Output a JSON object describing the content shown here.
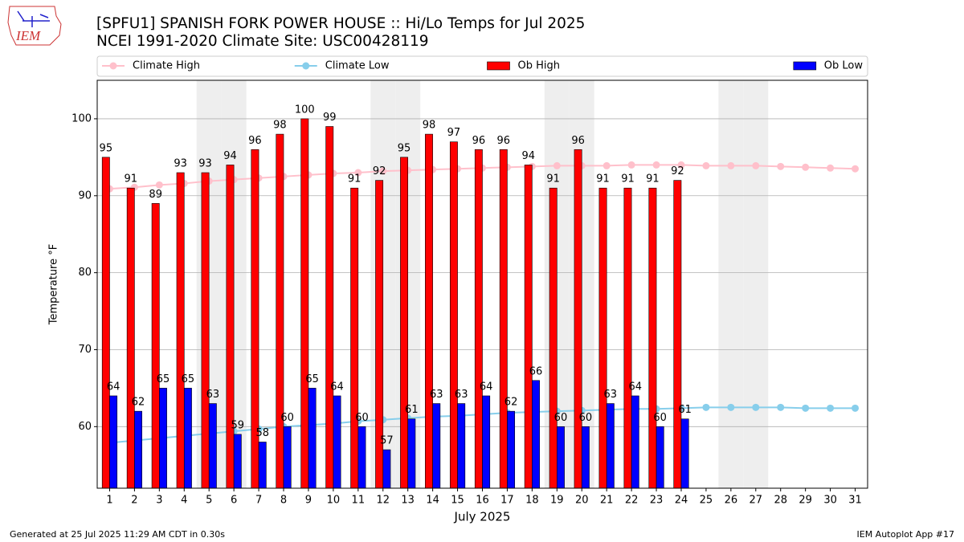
{
  "chart_data": {
    "type": "bar",
    "title": "[SPFU1] SPANISH FORK POWER HOUSE :: Hi/Lo Temps for Jul 2025",
    "subtitle": "NCEI 1991-2020 Climate Site: USC00428119",
    "xlabel": "July 2025",
    "ylabel": "Temperature °F",
    "categories": [
      "1",
      "2",
      "3",
      "4",
      "5",
      "6",
      "7",
      "8",
      "9",
      "10",
      "11",
      "12",
      "13",
      "14",
      "15",
      "16",
      "17",
      "18",
      "19",
      "20",
      "21",
      "22",
      "23",
      "24",
      "25",
      "26",
      "27",
      "28",
      "29",
      "30",
      "31"
    ],
    "shaded_days": [
      "5",
      "6",
      "12",
      "13",
      "19",
      "20",
      "26",
      "27"
    ],
    "shade_color": "#eeeeee",
    "series": [
      {
        "name": "Climate High",
        "type": "line",
        "color": "#ffc0cb",
        "values": [
          90.9,
          91.1,
          91.4,
          91.6,
          91.9,
          92.1,
          92.3,
          92.5,
          92.7,
          92.9,
          93.0,
          93.2,
          93.3,
          93.4,
          93.5,
          93.6,
          93.7,
          93.8,
          93.9,
          93.9,
          93.9,
          94.0,
          94.0,
          94.0,
          93.9,
          93.9,
          93.9,
          93.8,
          93.7,
          93.6,
          93.5
        ]
      },
      {
        "name": "Climate Low",
        "type": "line",
        "color": "#87ceeb",
        "values": [
          57.9,
          58.2,
          58.5,
          58.8,
          59.1,
          59.4,
          59.7,
          60.0,
          60.2,
          60.4,
          60.7,
          60.9,
          61.1,
          61.3,
          61.4,
          61.6,
          61.8,
          61.9,
          62.0,
          62.1,
          62.2,
          62.3,
          62.3,
          62.4,
          62.5,
          62.5,
          62.5,
          62.5,
          62.4,
          62.4,
          62.4
        ]
      },
      {
        "name": "Ob High",
        "type": "bar",
        "color": "#ff0000",
        "values": [
          95,
          91,
          89,
          93,
          93,
          94,
          96,
          98,
          100,
          99,
          91,
          92,
          95,
          98,
          97,
          96,
          96,
          94,
          91,
          96,
          91,
          91,
          91,
          92,
          null,
          null,
          null,
          null,
          null,
          null,
          null
        ]
      },
      {
        "name": "Ob Low",
        "type": "bar",
        "color": "#0000ff",
        "values": [
          64,
          62,
          65,
          65,
          63,
          59,
          58,
          60,
          65,
          64,
          60,
          57,
          61,
          63,
          63,
          64,
          62,
          66,
          60,
          60,
          63,
          64,
          60,
          61,
          null,
          null,
          null,
          null,
          null,
          null,
          null
        ]
      }
    ],
    "ylim": [
      52,
      105
    ],
    "yticks": [
      60,
      70,
      80,
      90,
      100
    ],
    "grid": true,
    "legend": "top"
  },
  "logo": "IEM",
  "footer_left": "Generated at 25 Jul 2025 11:29 AM CDT in 0.30s",
  "footer_right": "IEM Autoplot App #17"
}
